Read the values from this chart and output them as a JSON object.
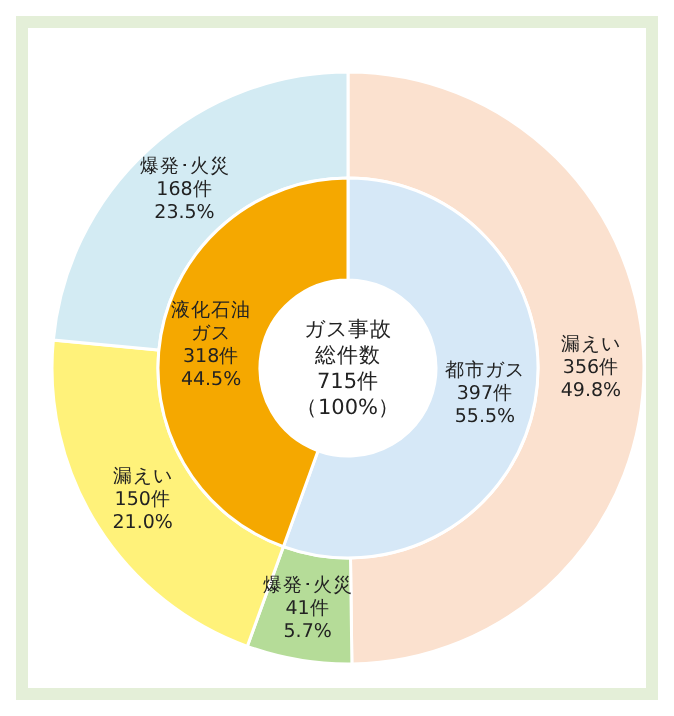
{
  "chart_data": [
    {
      "type": "donut",
      "categories": [
        "都市ガス",
        "液化石油ガス"
      ],
      "values": [
        397,
        318
      ],
      "colors": [
        "#d6e8f7",
        "#f5a800"
      ],
      "value_labels": [
        "397件\n55.5%",
        "318件\n44.5%"
      ],
      "annotations": [
        "ガス事故",
        "総件数",
        "715件",
        "（100%）"
      ]
    },
    {
      "type": "donut",
      "categories": [
        "漏えい",
        "爆発･火災",
        "漏えい",
        "爆発･火災"
      ],
      "values": [
        356,
        41,
        150,
        168
      ],
      "colors": [
        "#fbe1cf",
        "#b5dc98",
        "#fff27a",
        "#d3ebf3"
      ],
      "value_labels": [
        "356件\n49.8%",
        "41件\n5.7%",
        "150件\n21.0%",
        "168件\n23.5%"
      ]
    }
  ]
}
